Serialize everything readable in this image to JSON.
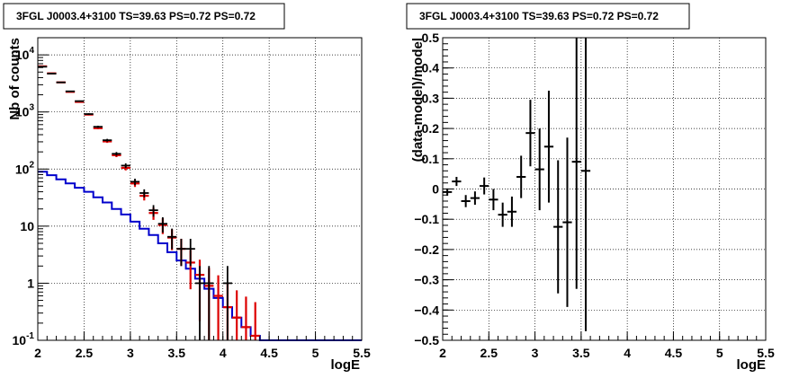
{
  "chart_data": [
    {
      "type": "line",
      "panel": "left",
      "title": "3FGL J0003.4+3100 TS=39.63 PS=0.72 PS=0.72",
      "xlabel": "logE",
      "ylabel": "Nb of counts",
      "xlim": [
        2,
        5.5
      ],
      "ylim": [
        0.1,
        20000
      ],
      "ylog": true,
      "grid": true,
      "x_ticks": [
        "2",
        "2.5",
        "3",
        "3.5",
        "4",
        "4.5",
        "5",
        "5.5"
      ],
      "y_ticks": [
        "10^-1",
        "1",
        "10",
        "10^2",
        "10^3",
        "10^4"
      ],
      "y_tick_values": [
        0.1,
        1,
        10,
        100,
        1000,
        10000
      ],
      "bin_edges": [
        2.0,
        2.1,
        2.2,
        2.3,
        2.4,
        2.5,
        2.6,
        2.7,
        2.8,
        2.9,
        3.0,
        3.1,
        3.2,
        3.3,
        3.4,
        3.5,
        3.6,
        3.7,
        3.8,
        3.9,
        4.0,
        4.1,
        4.2,
        4.3,
        4.4,
        4.5,
        4.6,
        4.7,
        4.8,
        4.9,
        5.0,
        5.1,
        5.2,
        5.3,
        5.4,
        5.5
      ],
      "series": [
        {
          "kind": "data",
          "color": "#000000",
          "points": [
            {
              "x": 2.05,
              "y": 6200
            },
            {
              "x": 2.15,
              "y": 4700
            },
            {
              "x": 2.25,
              "y": 3300
            },
            {
              "x": 2.35,
              "y": 2300
            },
            {
              "x": 2.45,
              "y": 1550
            },
            {
              "x": 2.55,
              "y": 920
            },
            {
              "x": 2.65,
              "y": 550
            },
            {
              "x": 2.75,
              "y": 320
            },
            {
              "x": 2.85,
              "y": 185
            },
            {
              "x": 2.95,
              "y": 115
            },
            {
              "x": 3.05,
              "y": 60
            },
            {
              "x": 3.15,
              "y": 38
            },
            {
              "x": 3.25,
              "y": 19
            },
            {
              "x": 3.35,
              "y": 11
            },
            {
              "x": 3.45,
              "y": 6.5
            },
            {
              "x": 3.55,
              "y": 4
            },
            {
              "x": 3.65,
              "y": 4
            },
            {
              "x": 3.75,
              "y": 1
            },
            {
              "x": 3.85,
              "y": 1
            },
            {
              "x": 4.05,
              "y": 1
            }
          ]
        },
        {
          "kind": "model",
          "color": "#dd0000",
          "points": [
            {
              "x": 2.05,
              "y": 6300
            },
            {
              "x": 2.15,
              "y": 4750
            },
            {
              "x": 2.25,
              "y": 3300
            },
            {
              "x": 2.35,
              "y": 2250
            },
            {
              "x": 2.45,
              "y": 1500
            },
            {
              "x": 2.55,
              "y": 900
            },
            {
              "x": 2.65,
              "y": 520
            },
            {
              "x": 2.75,
              "y": 305
            },
            {
              "x": 2.85,
              "y": 175
            },
            {
              "x": 2.95,
              "y": 105
            },
            {
              "x": 3.05,
              "y": 56
            },
            {
              "x": 3.15,
              "y": 34
            },
            {
              "x": 3.25,
              "y": 17
            },
            {
              "x": 3.35,
              "y": 10.5
            },
            {
              "x": 3.45,
              "y": 6.3
            },
            {
              "x": 3.55,
              "y": 4
            },
            {
              "x": 3.65,
              "y": 2.3
            },
            {
              "x": 3.75,
              "y": 1.4
            },
            {
              "x": 3.85,
              "y": 0.9
            },
            {
              "x": 3.95,
              "y": 0.6
            },
            {
              "x": 4.05,
              "y": 0.38
            },
            {
              "x": 4.15,
              "y": 0.25
            },
            {
              "x": 4.25,
              "y": 0.17
            },
            {
              "x": 4.35,
              "y": 0.12
            }
          ]
        },
        {
          "kind": "background",
          "color": "#0000cc",
          "values": [
            90,
            78,
            66,
            56,
            47,
            40,
            32,
            26,
            20,
            16,
            12,
            9,
            7,
            5,
            3.5,
            2.5,
            1.8,
            1.2,
            0.8,
            0.55,
            0.38,
            0.25,
            0.17,
            0.12,
            0.1,
            0.1,
            0.1,
            0.1,
            0.1,
            0.1,
            0.1,
            0.1,
            0.1,
            0.1,
            0.1
          ]
        }
      ]
    },
    {
      "type": "scatter",
      "panel": "right",
      "title": "3FGL J0003.4+3100 TS=39.63 PS=0.72 PS=0.72",
      "xlabel": "logE",
      "ylabel": "(data-model)/model",
      "xlim": [
        2,
        5.5
      ],
      "ylim": [
        -0.5,
        0.5
      ],
      "grid": true,
      "x_ticks": [
        "2",
        "2.5",
        "3",
        "3.5",
        "4",
        "4.5",
        "5",
        "5.5"
      ],
      "y_ticks": [
        "−0.5",
        "−0.4",
        "−0.3",
        "−0.2",
        "−0.1",
        "0",
        "0.1",
        "0.2",
        "0.3",
        "0.4",
        "0.5"
      ],
      "points": [
        {
          "x": 2.05,
          "y": -0.01,
          "err": 0.012
        },
        {
          "x": 2.15,
          "y": 0.025,
          "err": 0.015
        },
        {
          "x": 2.25,
          "y": -0.04,
          "err": 0.02
        },
        {
          "x": 2.35,
          "y": -0.03,
          "err": 0.022
        },
        {
          "x": 2.45,
          "y": 0.01,
          "err": 0.028
        },
        {
          "x": 2.55,
          "y": -0.035,
          "err": 0.035
        },
        {
          "x": 2.65,
          "y": -0.085,
          "err": 0.04
        },
        {
          "x": 2.75,
          "y": -0.075,
          "err": 0.05
        },
        {
          "x": 2.85,
          "y": 0.04,
          "err": 0.07
        },
        {
          "x": 2.95,
          "y": 0.185,
          "err": 0.11
        },
        {
          "x": 3.05,
          "y": 0.065,
          "err": 0.135
        },
        {
          "x": 3.15,
          "y": 0.14,
          "err": 0.185
        },
        {
          "x": 3.25,
          "y": -0.125,
          "err": 0.22
        },
        {
          "x": 3.35,
          "y": -0.11,
          "err": 0.28
        },
        {
          "x": 3.45,
          "y": 0.09,
          "err": 0.42
        },
        {
          "x": 3.55,
          "y": 0.06,
          "err": 0.53
        }
      ]
    }
  ]
}
